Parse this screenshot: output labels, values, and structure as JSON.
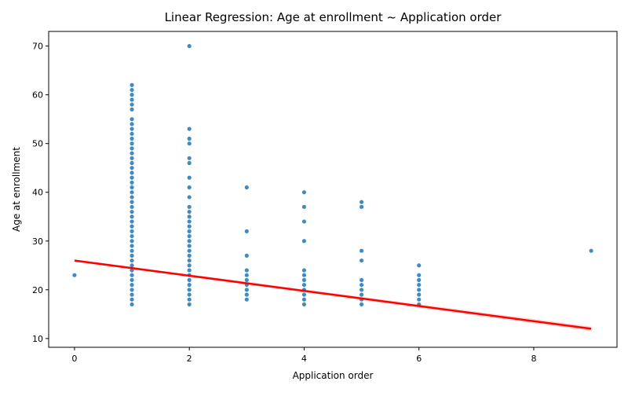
{
  "chart_data": {
    "type": "scatter",
    "title": "Linear Regression: Age at enrollment ~ Application order",
    "xlabel": "Application order",
    "ylabel": "Age at enrollment",
    "xlim": [
      -0.45,
      9.45
    ],
    "ylim": [
      8.2,
      73.0
    ],
    "x_ticks": [
      0,
      2,
      4,
      6,
      8
    ],
    "y_ticks": [
      10,
      20,
      30,
      40,
      50,
      60,
      70
    ],
    "grid": false,
    "point_color": "#1f77b4",
    "line_color": "#ff0000",
    "regression": {
      "x": [
        0,
        9
      ],
      "y": [
        26.0,
        12.0
      ]
    },
    "points": [
      [
        0,
        23
      ],
      [
        1,
        17
      ],
      [
        1,
        18
      ],
      [
        1,
        19
      ],
      [
        1,
        20
      ],
      [
        1,
        21
      ],
      [
        1,
        22
      ],
      [
        1,
        23
      ],
      [
        1,
        24
      ],
      [
        1,
        25
      ],
      [
        1,
        26
      ],
      [
        1,
        27
      ],
      [
        1,
        28
      ],
      [
        1,
        29
      ],
      [
        1,
        30
      ],
      [
        1,
        31
      ],
      [
        1,
        32
      ],
      [
        1,
        33
      ],
      [
        1,
        34
      ],
      [
        1,
        35
      ],
      [
        1,
        36
      ],
      [
        1,
        37
      ],
      [
        1,
        38
      ],
      [
        1,
        39
      ],
      [
        1,
        40
      ],
      [
        1,
        41
      ],
      [
        1,
        42
      ],
      [
        1,
        43
      ],
      [
        1,
        44
      ],
      [
        1,
        45
      ],
      [
        1,
        46
      ],
      [
        1,
        47
      ],
      [
        1,
        48
      ],
      [
        1,
        49
      ],
      [
        1,
        50
      ],
      [
        1,
        51
      ],
      [
        1,
        52
      ],
      [
        1,
        53
      ],
      [
        1,
        54
      ],
      [
        1,
        55
      ],
      [
        1,
        57
      ],
      [
        1,
        58
      ],
      [
        1,
        59
      ],
      [
        1,
        60
      ],
      [
        1,
        61
      ],
      [
        1,
        62
      ],
      [
        2,
        17
      ],
      [
        2,
        18
      ],
      [
        2,
        19
      ],
      [
        2,
        20
      ],
      [
        2,
        21
      ],
      [
        2,
        22
      ],
      [
        2,
        23
      ],
      [
        2,
        24
      ],
      [
        2,
        25
      ],
      [
        2,
        26
      ],
      [
        2,
        27
      ],
      [
        2,
        28
      ],
      [
        2,
        29
      ],
      [
        2,
        30
      ],
      [
        2,
        31
      ],
      [
        2,
        32
      ],
      [
        2,
        33
      ],
      [
        2,
        34
      ],
      [
        2,
        35
      ],
      [
        2,
        36
      ],
      [
        2,
        37
      ],
      [
        2,
        39
      ],
      [
        2,
        41
      ],
      [
        2,
        43
      ],
      [
        2,
        46
      ],
      [
        2,
        47
      ],
      [
        2,
        50
      ],
      [
        2,
        51
      ],
      [
        2,
        53
      ],
      [
        2,
        70
      ],
      [
        3,
        18
      ],
      [
        3,
        19
      ],
      [
        3,
        20
      ],
      [
        3,
        21
      ],
      [
        3,
        22
      ],
      [
        3,
        23
      ],
      [
        3,
        24
      ],
      [
        3,
        27
      ],
      [
        3,
        32
      ],
      [
        3,
        41
      ],
      [
        4,
        17
      ],
      [
        4,
        18
      ],
      [
        4,
        19
      ],
      [
        4,
        20
      ],
      [
        4,
        21
      ],
      [
        4,
        22
      ],
      [
        4,
        23
      ],
      [
        4,
        24
      ],
      [
        4,
        30
      ],
      [
        4,
        34
      ],
      [
        4,
        37
      ],
      [
        4,
        40
      ],
      [
        5,
        17
      ],
      [
        5,
        18
      ],
      [
        5,
        19
      ],
      [
        5,
        20
      ],
      [
        5,
        21
      ],
      [
        5,
        22
      ],
      [
        5,
        26
      ],
      [
        5,
        28
      ],
      [
        5,
        37
      ],
      [
        5,
        38
      ],
      [
        6,
        17
      ],
      [
        6,
        18
      ],
      [
        6,
        19
      ],
      [
        6,
        20
      ],
      [
        6,
        21
      ],
      [
        6,
        22
      ],
      [
        6,
        23
      ],
      [
        6,
        25
      ],
      [
        9,
        28
      ]
    ]
  }
}
